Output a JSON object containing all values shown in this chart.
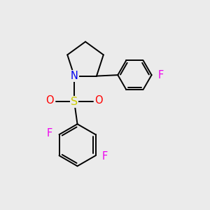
{
  "bg_color": "#ebebeb",
  "bond_color": "#000000",
  "bond_width": 1.4,
  "atoms": {
    "N_color": "#0000ee",
    "S_color": "#cccc00",
    "O_color": "#ff0000",
    "F_color": "#ee00ee"
  },
  "font_size_atom": 10.5,
  "xlim": [
    0,
    10
  ],
  "ylim": [
    0,
    10
  ]
}
